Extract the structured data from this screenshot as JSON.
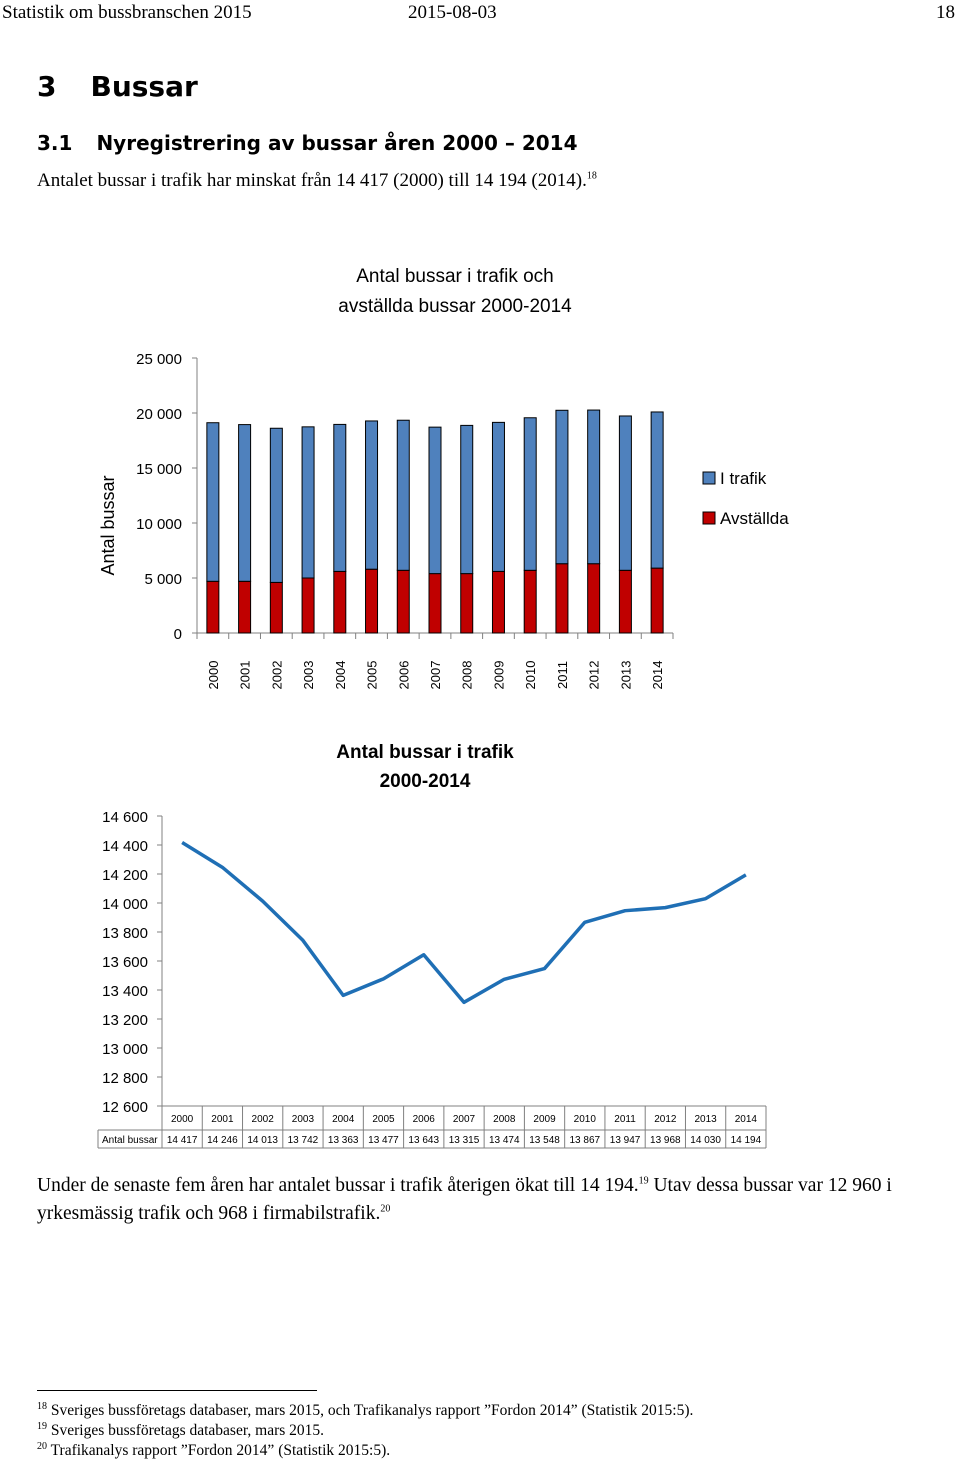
{
  "header": {
    "title": "Statistik om bussbranschen 2015",
    "date": "2015-08-03",
    "page": "18"
  },
  "section": {
    "number": "3",
    "title": "Bussar"
  },
  "subsection": {
    "number": "3.1",
    "title": "Nyregistrering av bussar åren 2000 – 2014"
  },
  "intro": {
    "text": "Antalet bussar i trafik har minskat från 14 417 (2000) till 14 194 (2014).",
    "ref": "18"
  },
  "chart_data": [
    {
      "type": "bar",
      "stacked": true,
      "title": [
        "Antal bussar i trafik och",
        "avställda bussar 2000-2014"
      ],
      "ylabel": "Antal bussar",
      "xlabel": "",
      "ylim": [
        0,
        25000
      ],
      "yticks": [
        0,
        5000,
        10000,
        15000,
        20000,
        25000
      ],
      "ytick_labels": [
        "0",
        "5 000",
        "10 000",
        "15 000",
        "20 000",
        "25 000"
      ],
      "categories": [
        "2000",
        "2001",
        "2002",
        "2003",
        "2004",
        "2005",
        "2006",
        "2007",
        "2008",
        "2009",
        "2010",
        "2011",
        "2012",
        "2013",
        "2014"
      ],
      "legend_position": "right",
      "series": [
        {
          "name": "Avställda",
          "color": "#C00000",
          "values": [
            4700,
            4700,
            4600,
            5000,
            5600,
            5800,
            5700,
            5400,
            5400,
            5600,
            5700,
            6300,
            6300,
            5700,
            5900
          ]
        },
        {
          "name": "I trafik",
          "color": "#4F81BD",
          "values": [
            14417,
            14246,
            14013,
            13742,
            13363,
            13477,
            13643,
            13315,
            13474,
            13548,
            13867,
            13947,
            13968,
            14030,
            14194
          ]
        }
      ]
    },
    {
      "type": "line",
      "title": [
        "Antal bussar i trafik",
        "2000-2014"
      ],
      "xlabel": "",
      "ylabel": "",
      "ylim": [
        12600,
        14600
      ],
      "yticks": [
        12600,
        12800,
        13000,
        13200,
        13400,
        13600,
        13800,
        14000,
        14200,
        14400,
        14600
      ],
      "ytick_labels": [
        "12 600",
        "12 800",
        "13 000",
        "13 200",
        "13 400",
        "13 600",
        "13 800",
        "14 000",
        "14 200",
        "14 400",
        "14 600"
      ],
      "categories": [
        "2000",
        "2001",
        "2002",
        "2003",
        "2004",
        "2005",
        "2006",
        "2007",
        "2008",
        "2009",
        "2010",
        "2011",
        "2012",
        "2013",
        "2014"
      ],
      "series": [
        {
          "name": "Antal bussar",
          "color": "#1F6FB5",
          "values": [
            14417,
            14246,
            14013,
            13742,
            13363,
            13477,
            13643,
            13315,
            13474,
            13548,
            13867,
            13947,
            13968,
            14030,
            14194
          ]
        }
      ],
      "table_labels": [
        "14 417",
        "14 246",
        "14 013",
        "13 742",
        "13 363",
        "13 477",
        "13 643",
        "13 315",
        "13 474",
        "13 548",
        "13 867",
        "13 947",
        "13 968",
        "14 030",
        "14 194"
      ]
    }
  ],
  "paragraph": {
    "part1": "Under de senaste fem åren har antalet bussar i trafik återigen ökat till 14 194.",
    "ref1": "19",
    "part2": " Utav dessa bussar var 12 960 i yrkesmässig trafik och 968 i firmabilstrafik.",
    "ref2": "20"
  },
  "footnotes": [
    {
      "num": "18",
      "text": "Sveriges bussföretags databaser, mars 2015, och Trafikanalys rapport ”Fordon 2014” (Statistik 2015:5)."
    },
    {
      "num": "19",
      "text": "Sveriges bussföretags databaser, mars 2015."
    },
    {
      "num": "20",
      "text": "Trafikanalys rapport ”Fordon 2014” (Statistik 2015:5)."
    }
  ]
}
